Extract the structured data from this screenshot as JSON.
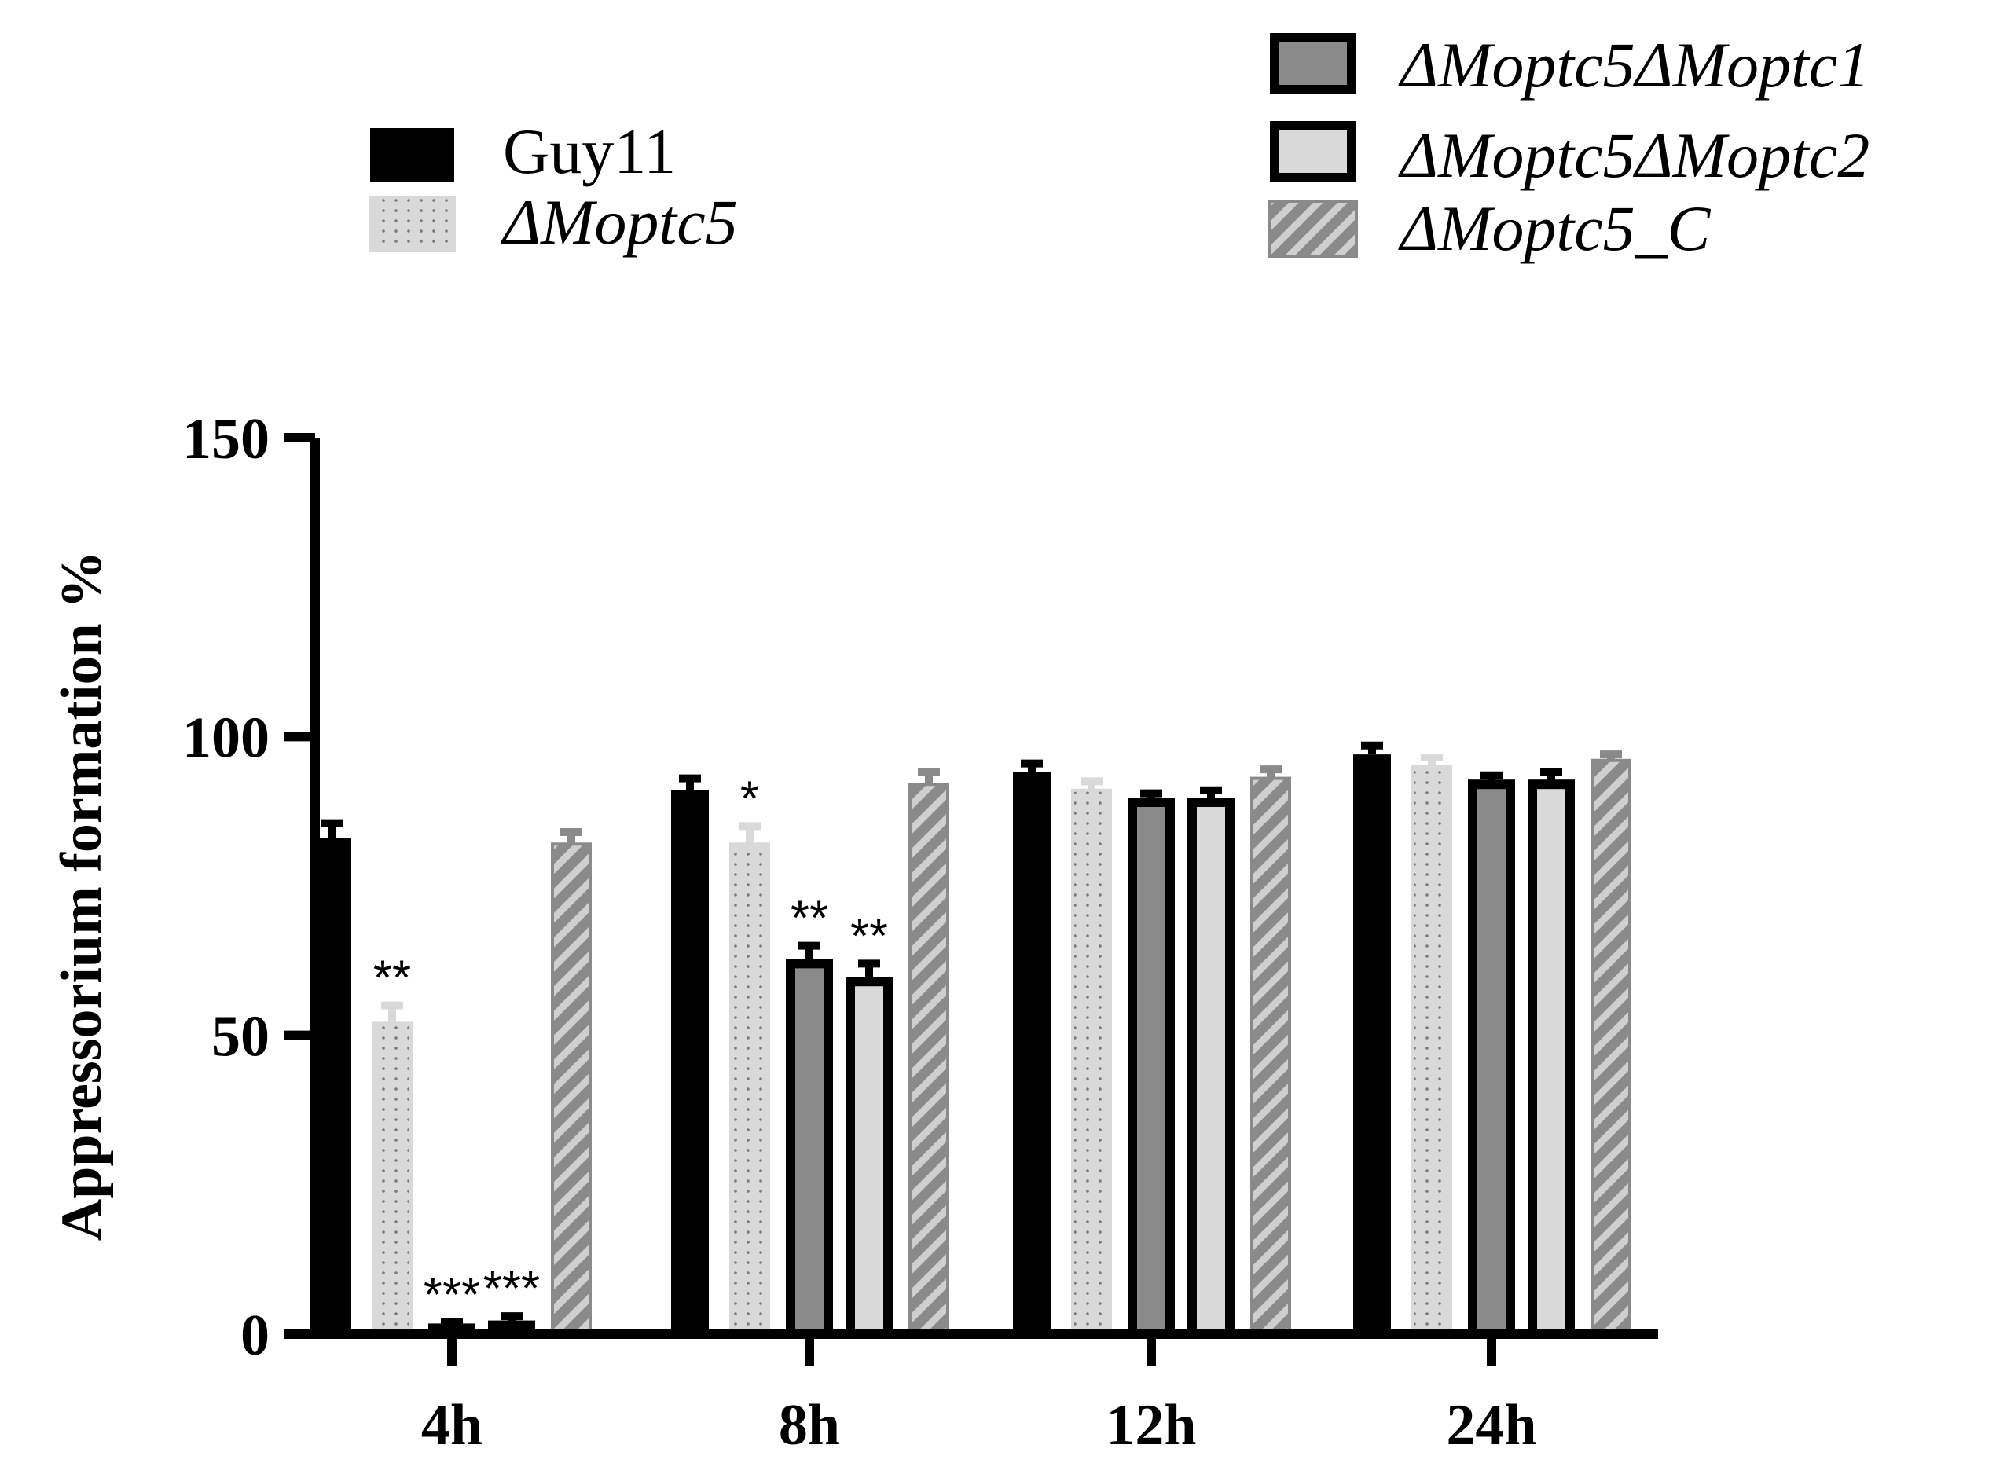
{
  "chart_data": {
    "type": "bar",
    "title": "",
    "xlabel": "",
    "ylabel": "Appressorium formation %",
    "ylim": [
      0,
      150
    ],
    "yticks": [
      0,
      50,
      100,
      150
    ],
    "grid": false,
    "legend_position": "top",
    "categories": [
      "4h",
      "8h",
      "12h",
      "24h"
    ],
    "series": [
      {
        "name": "Guy11",
        "style": "solid-black",
        "values": [
          83,
          91,
          94,
          97
        ],
        "errors": [
          2.5,
          2,
          1.5,
          1.5
        ],
        "significance": [
          "",
          "",
          "",
          ""
        ]
      },
      {
        "name": "ΔMoptc5",
        "style": "light-gray-dotted",
        "values": [
          52,
          82,
          91,
          95
        ],
        "errors": [
          3,
          3,
          1.5,
          1.5
        ],
        "significance": [
          "**",
          "*",
          "",
          ""
        ]
      },
      {
        "name": "ΔMoptc5ΔMoptc1",
        "style": "gray-fill-black-outline",
        "values": [
          1,
          62,
          89,
          92
        ],
        "errors": [
          1,
          3,
          1.5,
          1.5
        ],
        "significance": [
          "***",
          "**",
          "",
          ""
        ]
      },
      {
        "name": "ΔMoptc5ΔMoptc2",
        "style": "light-fill-black-outline",
        "values": [
          1.5,
          59,
          89,
          92
        ],
        "errors": [
          1.5,
          3,
          2,
          2
        ],
        "significance": [
          "***",
          "**",
          "",
          ""
        ]
      },
      {
        "name": "ΔMoptc5_C",
        "style": "gray-hatched",
        "values": [
          82,
          92,
          93,
          96
        ],
        "errors": [
          2,
          2,
          1.5,
          1
        ],
        "significance": [
          "",
          "",
          "",
          ""
        ]
      }
    ]
  },
  "colors": {
    "black": "#000000",
    "light_gray": "#d9d9d9",
    "mid_gray": "#8a8a8a",
    "hatch_light": "#cfcfcf"
  }
}
